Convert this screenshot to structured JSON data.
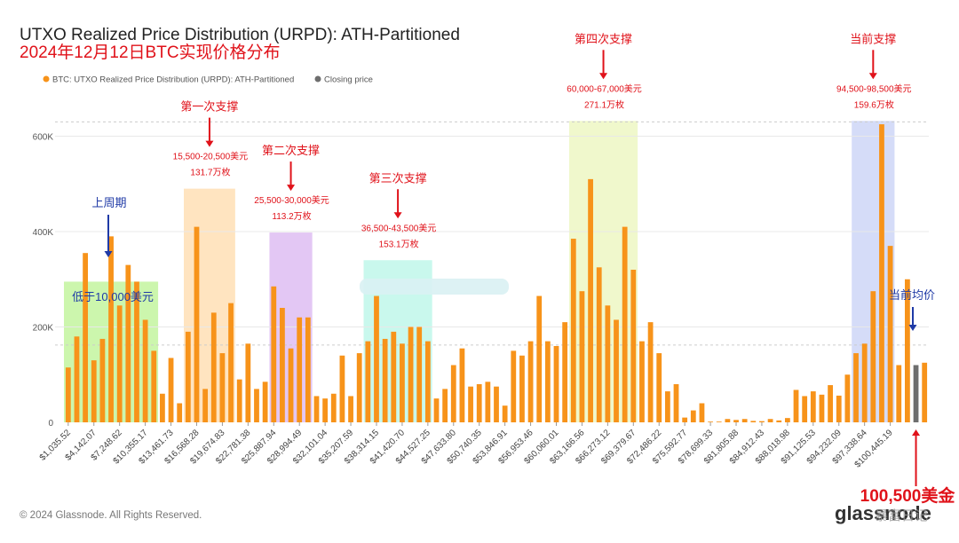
{
  "chart_data": {
    "type": "bar",
    "title": "UTXO Realized Price Distribution (URPD): ATH-Partitioned",
    "subtitle": "2024年12月12日BTC实现价格分布",
    "legend": [
      {
        "label": "BTC: UTXO Realized Price Distribution (URPD): ATH-Partitioned",
        "color": "#f7931a"
      },
      {
        "label": "Closing price",
        "color": "#6e6e6e"
      }
    ],
    "y_ticks": [
      {
        "value": 0,
        "label": "0"
      },
      {
        "value": 200000,
        "label": "200K"
      },
      {
        "value": 400000,
        "label": "400K"
      },
      {
        "value": 600000,
        "label": "600K"
      }
    ],
    "ylim": [
      0,
      650000
    ],
    "x_tick_labels": [
      "$1,035.52",
      "$4,142.07",
      "$7,248.62",
      "$10,355.17",
      "$13,461.73",
      "$16,568.28",
      "$19,674.83",
      "$22,781.38",
      "$25,887.94",
      "$28,994.49",
      "$32,101.04",
      "$35,207.59",
      "$38,314.15",
      "$41,420.70",
      "$44,527.25",
      "$47,633.80",
      "$50,740.35",
      "$53,846.91",
      "$56,953.46",
      "$60,060.01",
      "$63,166.56",
      "$66,273.12",
      "$69,379.67",
      "$72,486.22",
      "$75,592.77",
      "$78,699.33",
      "$81,805.88",
      "$84,912.43",
      "$88,018.98",
      "$91,125.53",
      "$94,232.09",
      "$97,338.64",
      "$100,445.19"
    ],
    "bucket_width_usd": 1035.5,
    "values": [
      115000,
      180000,
      355000,
      130000,
      175000,
      390000,
      245000,
      330000,
      295000,
      215000,
      150000,
      60000,
      135000,
      40000,
      190000,
      410000,
      70000,
      230000,
      145000,
      250000,
      90000,
      165000,
      70000,
      85000,
      285000,
      240000,
      155000,
      220000,
      220000,
      55000,
      50000,
      60000,
      140000,
      55000,
      145000,
      170000,
      265000,
      175000,
      190000,
      165000,
      200000,
      200000,
      170000,
      50000,
      70000,
      120000,
      155000,
      75000,
      80000,
      85000,
      75000,
      35000,
      150000,
      140000,
      170000,
      265000,
      170000,
      160000,
      210000,
      385000,
      275000,
      510000,
      325000,
      245000,
      215000,
      410000,
      320000,
      170000,
      210000,
      145000,
      65000,
      80000,
      10000,
      25000,
      40000,
      1500,
      1500,
      7000,
      5000,
      7000,
      3000,
      2500,
      7000,
      4000,
      9000,
      68000,
      55000,
      65000,
      58000,
      78000,
      56000,
      100000,
      145000,
      165000,
      275000,
      625000,
      370000,
      120000,
      300000,
      120000,
      125000
    ],
    "closing_price_index": 99,
    "closing_price_label": "100,500美金",
    "ath_reference_value": 630000,
    "current_avg_reference_value": 162000,
    "bands": [
      {
        "from_index": 0,
        "to_index": 10,
        "top_value": 295000,
        "color": "#b9f28e",
        "label": "低于10,000美元",
        "label_color": "#1f3aa6"
      },
      {
        "from_index": 14,
        "to_index": 19,
        "top_value": 490000,
        "color": "#ffd9a8",
        "heading": "第一次支撑",
        "range": "15,500-20,500美元",
        "amount": "131.7万枚"
      },
      {
        "from_index": 24,
        "to_index": 28,
        "top_value": 398000,
        "color": "#d8b2f0",
        "heading": "第二次支撑",
        "range": "25,500-30,000美元",
        "amount": "113.2万枚"
      },
      {
        "from_index": 35,
        "to_index": 42,
        "top_value": 340000,
        "color": "#b4f5e6",
        "heading": "第三次支撑",
        "range": "36,500-43,500美元",
        "amount": "153.1万枚"
      },
      {
        "from_index": 59,
        "to_index": 66,
        "top_value": 632000,
        "color": "#eaf5b8",
        "heading": "第四次支撑",
        "range": "60,000-67,000美元",
        "amount": "271.1万枚"
      },
      {
        "from_index": 92,
        "to_index": 96,
        "top_value": 632000,
        "color": "#c5cff5",
        "heading": "当前支撑",
        "range": "94,500-98,500美元",
        "amount": "159.6万枚"
      }
    ],
    "annotations": {
      "previous_cycle": "上周期",
      "current_average": "当前均价"
    },
    "copyright": "© 2024 Glassnode. All Rights Reserved.",
    "brand": "glassnode",
    "watermark": "暴富日记",
    "colors": {
      "bar": "#f7931a",
      "closing_bar": "#6e6e6e",
      "grid": "#e8e8e8",
      "annotation_red": "#e0121a",
      "annotation_blue": "#1f3aa6",
      "title": "#222222"
    }
  }
}
